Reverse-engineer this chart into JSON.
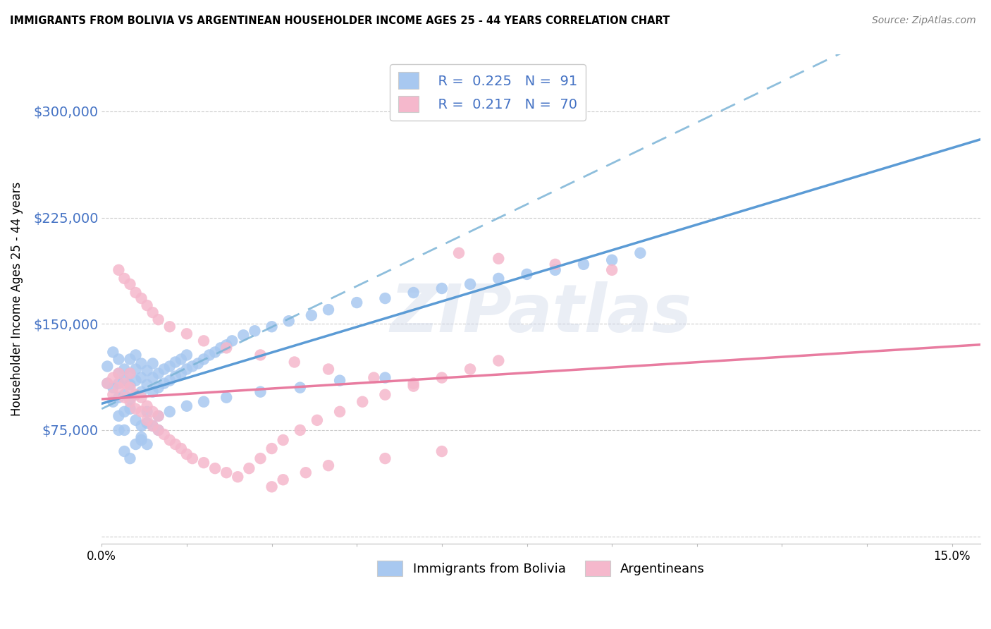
{
  "title": "IMMIGRANTS FROM BOLIVIA VS ARGENTINEAN HOUSEHOLDER INCOME AGES 25 - 44 YEARS CORRELATION CHART",
  "source": "Source: ZipAtlas.com",
  "ylabel": "Householder Income Ages 25 - 44 years",
  "xlim": [
    0.0,
    0.155
  ],
  "ylim": [
    -5000,
    340000
  ],
  "ytick_vals": [
    0,
    75000,
    150000,
    225000,
    300000
  ],
  "ytick_labels": [
    "",
    "$75,000",
    "$150,000",
    "$225,000",
    "$300,000"
  ],
  "xtick_vals": [
    0.0,
    0.015,
    0.03,
    0.045,
    0.06,
    0.075,
    0.09,
    0.105,
    0.12,
    0.135,
    0.15
  ],
  "xtick_labels": [
    "0.0%",
    "",
    "",
    "",
    "",
    "",
    "",
    "",
    "",
    "",
    "15.0%"
  ],
  "blue_R": "0.225",
  "blue_N": "91",
  "pink_R": "0.217",
  "pink_N": "70",
  "legend_label_blue": "Immigrants from Bolivia",
  "legend_label_pink": "Argentineans",
  "blue_color": "#a8c8f0",
  "pink_color": "#f5b8cc",
  "trend_blue_solid_color": "#5b9bd5",
  "trend_pink_solid_color": "#e87ca0",
  "trend_blue_dash_color": "#7ab3d6",
  "watermark": "ZIPatlas",
  "accent_color": "#4472c4",
  "yticklabel_color": "#4472c4",
  "blue_scatter_x": [
    0.001,
    0.001,
    0.002,
    0.002,
    0.002,
    0.003,
    0.003,
    0.003,
    0.003,
    0.003,
    0.004,
    0.004,
    0.004,
    0.004,
    0.004,
    0.005,
    0.005,
    0.005,
    0.005,
    0.005,
    0.006,
    0.006,
    0.006,
    0.006,
    0.006,
    0.007,
    0.007,
    0.007,
    0.007,
    0.007,
    0.008,
    0.008,
    0.008,
    0.008,
    0.009,
    0.009,
    0.009,
    0.009,
    0.01,
    0.01,
    0.01,
    0.011,
    0.011,
    0.012,
    0.012,
    0.013,
    0.013,
    0.014,
    0.014,
    0.015,
    0.015,
    0.016,
    0.017,
    0.018,
    0.019,
    0.02,
    0.021,
    0.022,
    0.023,
    0.025,
    0.027,
    0.03,
    0.033,
    0.037,
    0.04,
    0.045,
    0.05,
    0.055,
    0.06,
    0.065,
    0.07,
    0.075,
    0.08,
    0.085,
    0.09,
    0.095,
    0.003,
    0.004,
    0.005,
    0.006,
    0.007,
    0.008,
    0.01,
    0.012,
    0.015,
    0.018,
    0.022,
    0.028,
    0.035,
    0.042,
    0.05
  ],
  "blue_scatter_y": [
    120000,
    108000,
    105000,
    95000,
    130000,
    125000,
    115000,
    108000,
    98000,
    85000,
    110000,
    100000,
    118000,
    88000,
    75000,
    97000,
    107000,
    115000,
    125000,
    90000,
    100000,
    110000,
    118000,
    128000,
    82000,
    102000,
    112000,
    122000,
    78000,
    68000,
    107000,
    117000,
    88000,
    65000,
    102000,
    112000,
    122000,
    78000,
    105000,
    115000,
    75000,
    108000,
    118000,
    110000,
    120000,
    113000,
    123000,
    115000,
    125000,
    118000,
    128000,
    120000,
    122000,
    125000,
    128000,
    130000,
    133000,
    135000,
    138000,
    142000,
    145000,
    148000,
    152000,
    156000,
    160000,
    165000,
    168000,
    172000,
    175000,
    178000,
    182000,
    185000,
    188000,
    192000,
    195000,
    200000,
    75000,
    60000,
    55000,
    65000,
    70000,
    80000,
    85000,
    88000,
    92000,
    95000,
    98000,
    102000,
    105000,
    110000,
    112000
  ],
  "pink_scatter_x": [
    0.001,
    0.002,
    0.002,
    0.003,
    0.003,
    0.004,
    0.004,
    0.005,
    0.005,
    0.005,
    0.006,
    0.006,
    0.007,
    0.007,
    0.008,
    0.008,
    0.009,
    0.009,
    0.01,
    0.01,
    0.011,
    0.012,
    0.013,
    0.014,
    0.015,
    0.016,
    0.018,
    0.02,
    0.022,
    0.024,
    0.026,
    0.028,
    0.03,
    0.032,
    0.035,
    0.038,
    0.042,
    0.046,
    0.05,
    0.055,
    0.06,
    0.065,
    0.07,
    0.003,
    0.004,
    0.005,
    0.006,
    0.007,
    0.008,
    0.009,
    0.01,
    0.012,
    0.015,
    0.018,
    0.022,
    0.028,
    0.034,
    0.04,
    0.048,
    0.055,
    0.063,
    0.07,
    0.08,
    0.09,
    0.03,
    0.032,
    0.036,
    0.04,
    0.05,
    0.06
  ],
  "pink_scatter_y": [
    108000,
    100000,
    112000,
    105000,
    115000,
    98000,
    108000,
    95000,
    105000,
    115000,
    90000,
    100000,
    88000,
    98000,
    82000,
    92000,
    78000,
    88000,
    75000,
    85000,
    72000,
    68000,
    65000,
    62000,
    58000,
    55000,
    52000,
    48000,
    45000,
    42000,
    48000,
    55000,
    62000,
    68000,
    75000,
    82000,
    88000,
    95000,
    100000,
    106000,
    112000,
    118000,
    124000,
    188000,
    182000,
    178000,
    172000,
    168000,
    163000,
    158000,
    153000,
    148000,
    143000,
    138000,
    133000,
    128000,
    123000,
    118000,
    112000,
    108000,
    200000,
    196000,
    192000,
    188000,
    35000,
    40000,
    45000,
    50000,
    55000,
    60000
  ]
}
